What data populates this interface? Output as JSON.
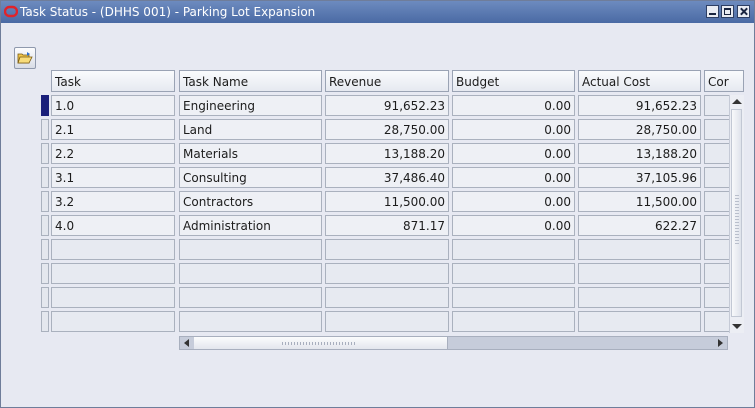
{
  "window": {
    "title": "Task Status  - (DHHS 001) - Parking Lot Expansion",
    "title_icon": "oracle-ring-icon",
    "controls": [
      "minimize-icon",
      "maximize-icon",
      "close-icon"
    ]
  },
  "toolbar": {
    "open_folder_icon": "open-folder-icon"
  },
  "table": {
    "columns": [
      "Task",
      "Task Name",
      "Revenue",
      "Budget",
      "Actual Cost",
      "Cor"
    ],
    "rows": [
      [
        "1.0",
        "Engineering",
        "91,652.23",
        "0.00",
        "91,652.23",
        ""
      ],
      [
        "2.1",
        "Land",
        "28,750.00",
        "0.00",
        "28,750.00",
        ""
      ],
      [
        "2.2",
        "Materials",
        "13,188.20",
        "0.00",
        "13,188.20",
        ""
      ],
      [
        "3.1",
        "Consulting",
        "37,486.40",
        "0.00",
        "37,105.96",
        ""
      ],
      [
        "3.2",
        "Contractors",
        "11,500.00",
        "0.00",
        "11,500.00",
        ""
      ],
      [
        "4.0",
        "Administration",
        "871.17",
        "0.00",
        "622.27",
        ""
      ],
      [
        "",
        "",
        "",
        "",
        "",
        ""
      ],
      [
        "",
        "",
        "",
        "",
        "",
        ""
      ],
      [
        "",
        "",
        "",
        "",
        "",
        ""
      ],
      [
        "",
        "",
        "",
        "",
        "",
        ""
      ]
    ],
    "active_row": 0
  },
  "colors": {
    "titlebar": "#4a6aa4",
    "row_indicator": "#1a1f7a",
    "background": "#e7e9f2"
  }
}
